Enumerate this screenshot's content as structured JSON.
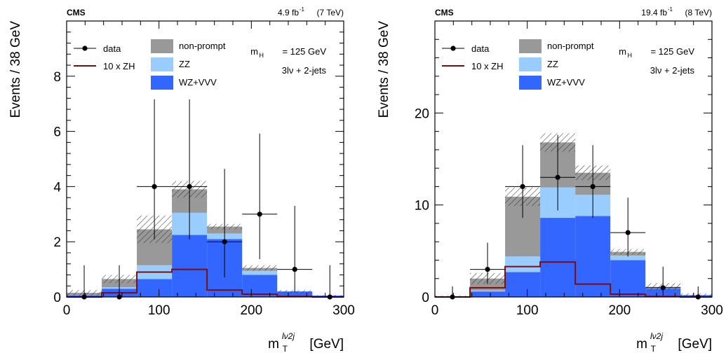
{
  "chart_data": [
    {
      "type": "bar",
      "cms_label": "CMS",
      "lumi_label": "4.9 fb",
      "lumi_sup": "-1",
      "energy_label": " (7 TeV)",
      "ylabel": "Events / 38 GeV",
      "xlabel_main": "m",
      "xlabel_sub": "T",
      "xlabel_sup": "lν2j",
      "xlabel_unit": " [GeV]",
      "xlim": [
        0,
        300
      ],
      "ylim": [
        0,
        10
      ],
      "x_ticks": [
        0,
        100,
        200,
        300
      ],
      "y_ticks": [
        0,
        2,
        4,
        6,
        8
      ],
      "bin_edges": [
        0,
        38,
        76,
        114,
        152,
        190,
        228,
        266,
        304
      ],
      "stack": [
        {
          "name": "WZ+VVV",
          "color": "#3366ff",
          "values": [
            0.05,
            0.3,
            0.65,
            2.25,
            2.1,
            0.8,
            0.2,
            0.05
          ]
        },
        {
          "name": "ZZ",
          "color": "#99ccff",
          "values": [
            0.0,
            0.05,
            0.5,
            0.8,
            0.2,
            0.15,
            0.0,
            0.0
          ]
        },
        {
          "name": "non-prompt",
          "color": "#999999",
          "values": [
            0.1,
            0.3,
            1.3,
            0.85,
            0.25,
            0.1,
            0.0,
            0.0
          ]
        }
      ],
      "uncertainty": [
        0.1,
        0.15,
        0.5,
        0.3,
        0.1,
        0.1,
        0.05,
        0.02
      ],
      "signal": {
        "name": "10 x ZH",
        "color": "#7a0c12",
        "values": [
          0.0,
          0.15,
          0.9,
          1.0,
          0.25,
          0.1,
          0.02,
          0.0
        ]
      },
      "data": {
        "name": "data",
        "x": [
          19,
          57,
          95,
          133,
          171,
          209,
          247,
          285
        ],
        "y": [
          0,
          0,
          4,
          4,
          2,
          3,
          1,
          0
        ],
        "err_up": [
          1.15,
          1.15,
          3.16,
          3.16,
          2.64,
          2.92,
          2.3,
          1.15
        ],
        "err_down": [
          0,
          0,
          1.91,
          1.91,
          1.29,
          1.63,
          0.83,
          0
        ]
      },
      "annotations": [
        "m",
        "H",
        " = 125 GeV",
        "3lν + 2-jets"
      ]
    },
    {
      "type": "bar",
      "cms_label": "CMS",
      "lumi_label": "19.4 fb",
      "lumi_sup": "-1",
      "energy_label": " (8 TeV)",
      "ylabel": "Events / 38 GeV",
      "xlabel_main": "m",
      "xlabel_sub": "T",
      "xlabel_sup": "lν2j",
      "xlabel_unit": " [GeV]",
      "xlim": [
        0,
        300
      ],
      "ylim": [
        0,
        30
      ],
      "x_ticks": [
        0,
        100,
        200,
        300
      ],
      "y_ticks": [
        0,
        10,
        20
      ],
      "bin_edges": [
        0,
        38,
        76,
        114,
        152,
        190,
        228,
        266,
        304
      ],
      "stack": [
        {
          "name": "WZ+VVV",
          "color": "#3366ff",
          "values": [
            0.05,
            0.6,
            2.7,
            8.6,
            8.8,
            4.0,
            0.9,
            0.2
          ]
        },
        {
          "name": "ZZ",
          "color": "#99ccff",
          "values": [
            0.0,
            0.1,
            1.7,
            3.3,
            2.3,
            0.5,
            0.1,
            0.0
          ]
        },
        {
          "name": "non-prompt",
          "color": "#999999",
          "values": [
            0.0,
            1.3,
            6.5,
            4.9,
            2.4,
            0.4,
            0.1,
            0.0
          ]
        }
      ],
      "uncertainty": [
        0.1,
        0.6,
        1.0,
        1.0,
        0.8,
        0.3,
        0.4,
        0.2
      ],
      "signal": {
        "name": "10 x ZH",
        "color": "#7a0c12",
        "values": [
          0.0,
          1.0,
          3.3,
          3.8,
          1.4,
          0.3,
          0.05,
          0.0
        ]
      },
      "data": {
        "name": "data",
        "x": [
          19,
          57,
          95,
          133,
          171,
          209,
          247,
          285
        ],
        "y": [
          0,
          3,
          12,
          13,
          12,
          7,
          1,
          0
        ],
        "err_up": [
          1.15,
          2.9,
          4.5,
          4.6,
          4.5,
          3.8,
          2.3,
          1.15
        ],
        "err_down": [
          0,
          1.6,
          3.4,
          3.6,
          3.4,
          2.6,
          0.83,
          0
        ]
      },
      "annotations": [
        "m",
        "H",
        " = 125 GeV",
        "3lν + 2-jets"
      ]
    }
  ]
}
